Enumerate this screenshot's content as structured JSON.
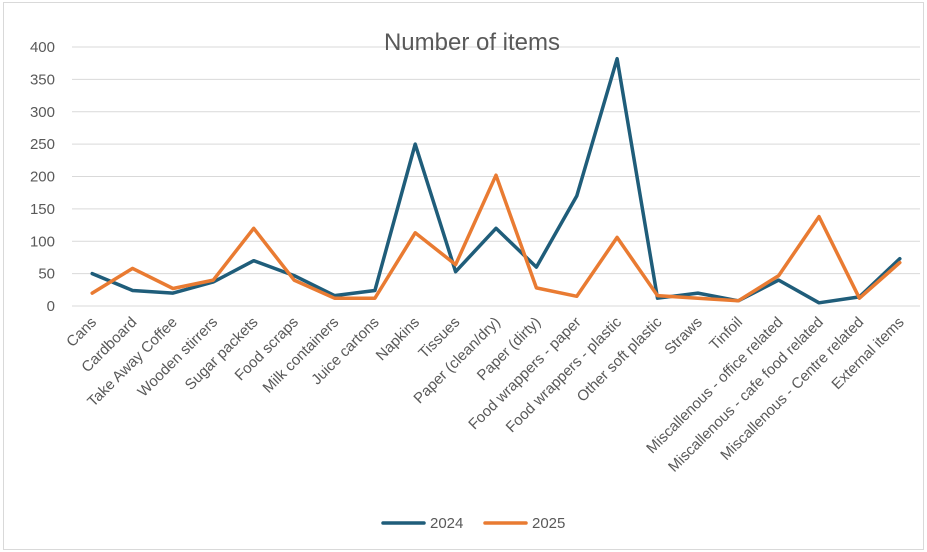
{
  "chart_data": {
    "type": "line",
    "title": "Number of items",
    "xlabel": "",
    "ylabel": "",
    "ylim": [
      0,
      400
    ],
    "yticks": [
      0,
      50,
      100,
      150,
      200,
      250,
      300,
      350,
      400
    ],
    "grid": true,
    "legend_position": "bottom",
    "categories": [
      "Cans",
      "Cardboard",
      "Take Away Coffee",
      "Wooden stirrers",
      "Sugar packets",
      "Food scraps",
      "Milk containers",
      "Juice cartons",
      "Napkins",
      "Tissues",
      "Paper (clean/dry)",
      "Paper (dirty)",
      "Food wrappers - paper",
      "Food wrappers - plastic",
      "Other soft plastic",
      "Straws",
      "Tinfoil",
      "Miscallenous - office related",
      "Miscallenous - cafe food related",
      "Miscallenous - Centre related",
      "External items"
    ],
    "series": [
      {
        "name": "2024",
        "color": "#1f5d7a",
        "values": [
          50,
          24,
          20,
          37,
          70,
          47,
          16,
          24,
          250,
          53,
          120,
          60,
          170,
          382,
          12,
          20,
          8,
          40,
          5,
          14,
          73
        ]
      },
      {
        "name": "2025",
        "color": "#e97b32",
        "values": [
          20,
          58,
          27,
          40,
          120,
          40,
          12,
          12,
          113,
          64,
          202,
          28,
          15,
          106,
          16,
          12,
          8,
          47,
          138,
          12,
          67
        ]
      }
    ]
  }
}
